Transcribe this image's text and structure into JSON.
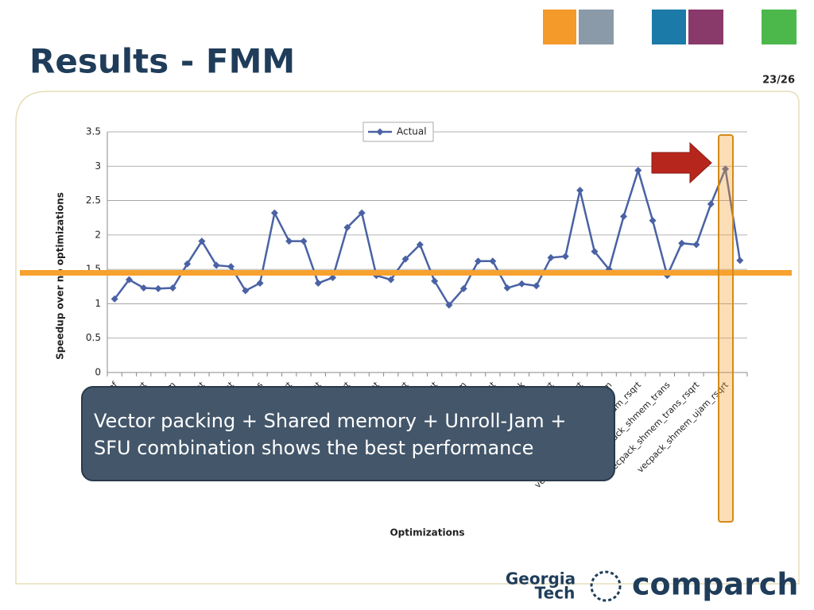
{
  "title": "Results - FMM",
  "page_number": "23/26",
  "callout": [
    "Vector packing + Shared memory + Unroll-Jam +",
    "SFU combination shows the best performance"
  ],
  "logos": {
    "left": [
      "Georgia",
      "Tech"
    ],
    "right": "comparch"
  },
  "chart_data": {
    "type": "line",
    "y_label": "Speedup over no optimizations",
    "x_label": "Optimizations",
    "categories": [
      "pref",
      null,
      "rsqrt",
      null,
      "shmem",
      null,
      "shmem_pref_ujam_rsqrt_tight",
      null,
      "shmem_rsqrt_tight",
      null,
      "shmem_trans",
      null,
      "shmem_trans_rsqrt",
      null,
      "shmem_trans_rsqrt_tight",
      null,
      "shmem_trans_ujam_rsqrt",
      null,
      "shmem_ujam_tight",
      null,
      "shmem_ujam_rsqrt",
      null,
      "shmem_ujam_rsqrt_tight",
      null,
      "ujam",
      null,
      "ujam_rsqrt_tight",
      null,
      "vecpack",
      null,
      "vecpack_pref_rsqrt",
      null,
      "vecpack_shmem_ujam_rsqrt",
      null,
      "vecpack_shmem",
      null,
      "vecpack_shmem_pref_ujam_rsqrt",
      null,
      "vecpack_shmem_trans",
      null,
      "vecpack_shmem_trans_rsqrt",
      null,
      "vecpack_shmem_ujam_rsqrt",
      null
    ],
    "series": [
      {
        "name": "Actual",
        "color": "#4a62a4",
        "values": [
          1.07,
          1.35,
          1.23,
          1.22,
          1.23,
          1.58,
          1.91,
          1.56,
          1.54,
          1.19,
          1.3,
          2.32,
          1.91,
          1.91,
          1.3,
          1.38,
          2.11,
          2.32,
          1.41,
          1.35,
          1.65,
          1.86,
          1.33,
          0.98,
          1.22,
          1.62,
          1.62,
          1.23,
          1.29,
          1.26,
          1.67,
          1.69,
          2.65,
          1.76,
          1.5,
          2.27,
          2.94,
          2.21,
          1.41,
          1.88,
          1.86,
          2.45,
          2.96,
          1.63
        ]
      }
    ],
    "ylim": [
      0,
      3.5
    ],
    "yticks": [
      0,
      0.5,
      1,
      1.5,
      2,
      2.5,
      3,
      3.5
    ],
    "grid": true,
    "reference_value": 1.45,
    "reference_color": "#f7a12e",
    "legend": "top"
  }
}
